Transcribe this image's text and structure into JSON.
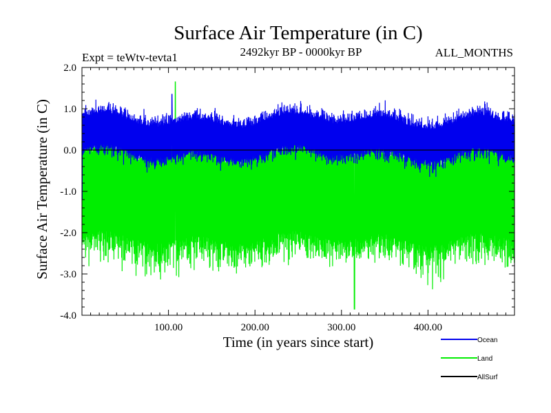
{
  "chart_data": {
    "type": "line",
    "title": "Surface Air Temperature (in C)",
    "subtitle_left": "Expt = teWtv-tevta1",
    "subtitle_center": "2492kyr BP - 0000kyr BP",
    "subtitle_right": "ALL_MONTHS",
    "xlabel": "Time (in years since start)",
    "ylabel": "Surface Air Temperature (in C)",
    "xlim": [
      0,
      500
    ],
    "ylim": [
      -4.0,
      2.0
    ],
    "x_ticks": [
      100,
      200,
      300,
      400
    ],
    "x_tick_labels": [
      "100.00",
      "200.00",
      "300.00",
      "400.00"
    ],
    "y_ticks": [
      2.0,
      1.0,
      0.0,
      -1.0,
      -2.0,
      -3.0,
      -4.0
    ],
    "y_tick_labels": [
      "2.0",
      "1.0",
      "0.0",
      "-1.0",
      "-2.0",
      "-3.0",
      "-4.0"
    ],
    "reference_line": {
      "y": 0.0,
      "style": "dashed"
    },
    "series": [
      {
        "name": "Land",
        "color": "#00ee00",
        "mean": -1.2,
        "typical_min": -2.9,
        "typical_max": 0.55,
        "extreme_min": -3.85,
        "extreme_max": 1.65,
        "extreme_min_x": 315,
        "extreme_max_x": 108
      },
      {
        "name": "Ocean",
        "color": "#0000ee",
        "mean": 0.25,
        "typical_min": -0.35,
        "typical_max": 1.0,
        "extreme_min": -1.2,
        "extreme_max": 1.35,
        "extreme_min_x": 0,
        "extreme_max_x": 104
      },
      {
        "name": "AllSurf",
        "color": "#000000",
        "mean": 0.0,
        "typical_min": 0.0,
        "typical_max": 0.0
      }
    ],
    "legend": [
      {
        "name": "Ocean",
        "color": "#0000ee"
      },
      {
        "name": "Land",
        "color": "#00ee00"
      },
      {
        "name": "AllSurf",
        "color": "#000000"
      }
    ]
  }
}
